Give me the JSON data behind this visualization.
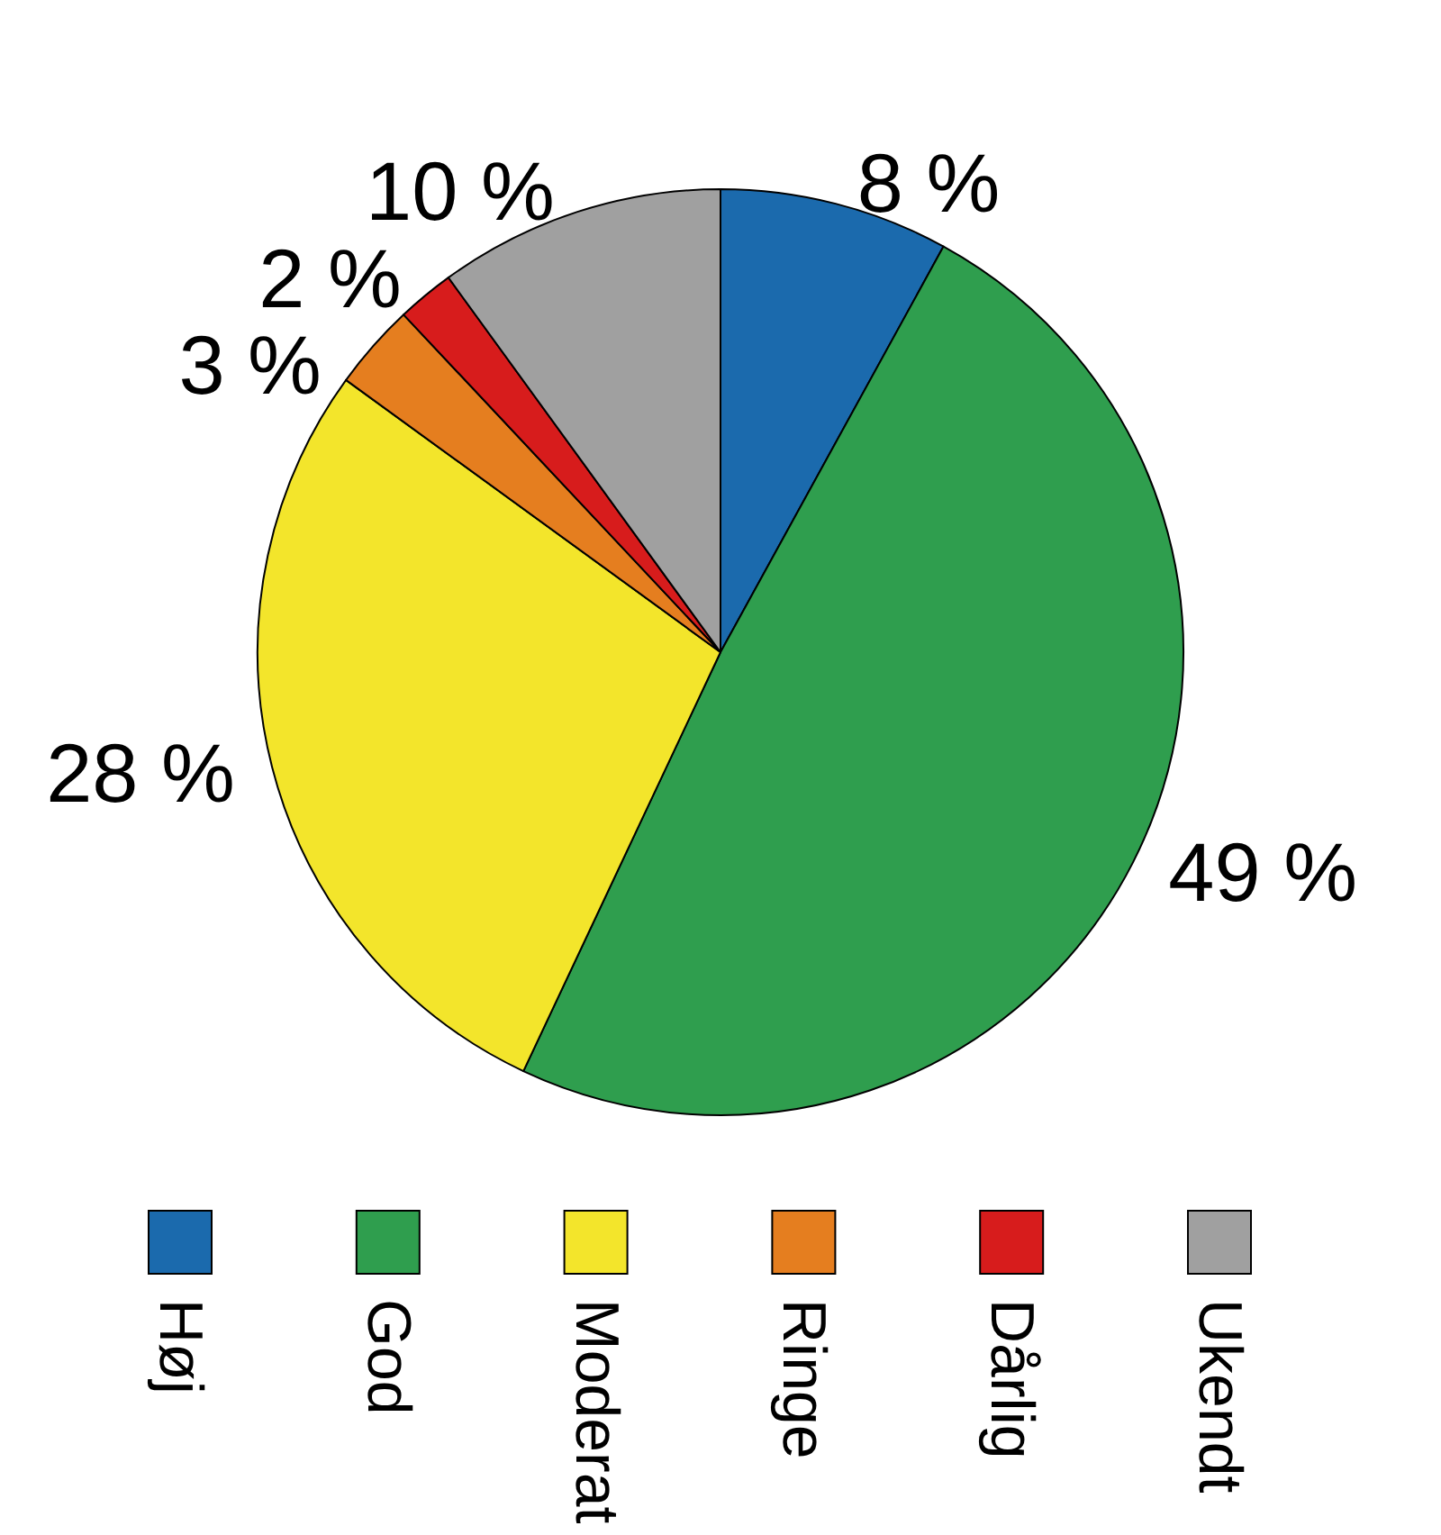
{
  "chart_data": {
    "type": "pie",
    "categories": [
      "Høj",
      "God",
      "Moderat",
      "Ringe",
      "Dårlig",
      "Ukendt"
    ],
    "values": [
      8,
      49,
      28,
      3,
      2,
      10
    ],
    "colors": [
      "#1b6aad",
      "#2f9e4e",
      "#f3e52b",
      "#e57e1f",
      "#d71c1c",
      "#a0a0a0"
    ],
    "value_labels": [
      "8 %",
      "49 %",
      "28 %",
      "3 %",
      "2 %",
      "10 %"
    ],
    "legend": "bottom"
  }
}
